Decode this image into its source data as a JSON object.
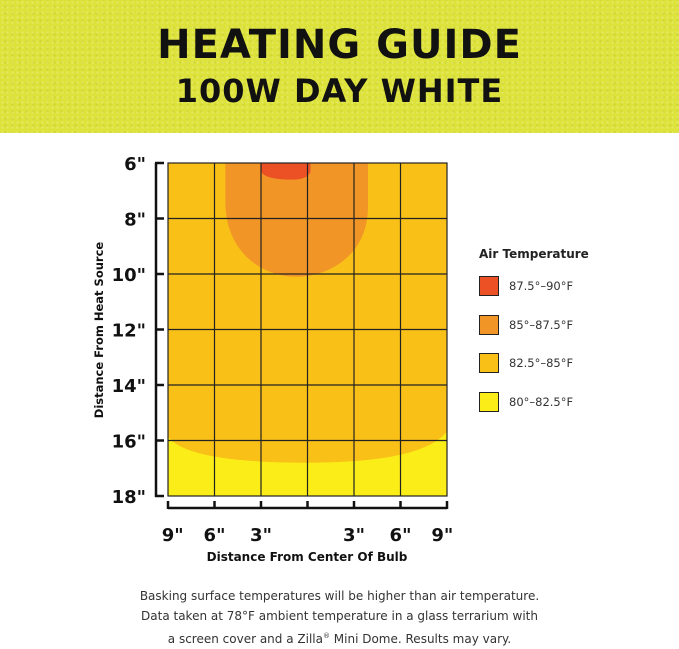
{
  "header": {
    "title": "HEATING GUIDE",
    "subtitle": "100W DAY WHITE",
    "background_color": "#dde33a"
  },
  "chart_data": {
    "type": "heatmap",
    "xlabel": "Distance From Center Of Bulb",
    "ylabel": "Distance From Heat Source",
    "x_tick_labels": [
      "9\"",
      "6\"",
      "3\"",
      "3\"",
      "6\"",
      "9\""
    ],
    "x_ticks": [
      -9,
      -6,
      -3,
      3,
      6,
      9
    ],
    "xlim": [
      -9,
      9
    ],
    "y_tick_labels": [
      "6\"",
      "8\"",
      "10\"",
      "12\"",
      "14\"",
      "16\"",
      "18\""
    ],
    "y_ticks": [
      6,
      8,
      10,
      12,
      14,
      16,
      18
    ],
    "ylim": [
      6,
      18
    ],
    "grid": true,
    "legend_title": "Air Temperature",
    "legend_position": "right",
    "bands": [
      {
        "label": "87.5°–90°F",
        "color": "#ec5126"
      },
      {
        "label": "85°–87.5°F",
        "color": "#f09526"
      },
      {
        "label": "82.5°–85°F",
        "color": "#f9c018"
      },
      {
        "label": "80°–82.5°F",
        "color": "#fbee18"
      }
    ],
    "zones": [
      {
        "band": "80°–82.5°F",
        "x_range": [
          -9,
          9
        ],
        "y_range": [
          6,
          18
        ]
      },
      {
        "band": "82.5°–85°F",
        "x_range": [
          -9,
          9
        ],
        "y_range": [
          6,
          16.8
        ]
      },
      {
        "band": "85°–87.5°F",
        "x_range": [
          -5.3,
          3.9
        ],
        "y_range": [
          6,
          10.1
        ]
      },
      {
        "band": "87.5°–90°F",
        "x_range": [
          -3,
          0
        ],
        "y_range": [
          6,
          6.6
        ]
      }
    ]
  },
  "footnote": {
    "line1": "Basking surface temperatures will be higher than air temperature.",
    "line2": "Data taken at 78°F ambient temperature in a glass terrarium with",
    "line3_pre": "a screen cover and a Zilla",
    "line3_reg": "®",
    "line3_post": " Mini Dome. Results may vary."
  }
}
